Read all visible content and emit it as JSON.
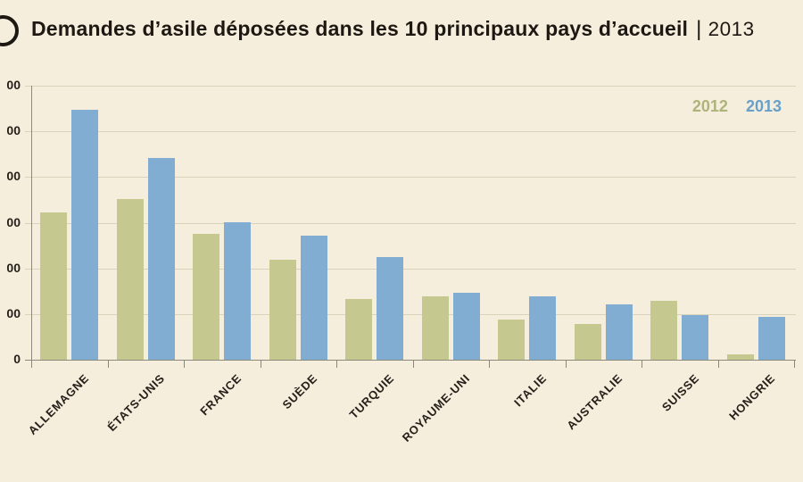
{
  "header": {
    "icon": "circle-outline-icon",
    "title_main": "Demandes d’asile déposées dans les 10 principaux pays d’accueil",
    "title_separator": "|",
    "title_year": "2013"
  },
  "legend": {
    "position": "top-right",
    "items": [
      {
        "label": "2012",
        "color": "#aeb37b"
      },
      {
        "label": "2013",
        "color": "#68a0ca"
      }
    ]
  },
  "y_axis": {
    "visible_labels": [
      "00",
      "00",
      "00",
      "00",
      "00",
      "00",
      "0"
    ]
  },
  "chart_data": {
    "type": "bar",
    "title": "Demandes d’asile déposées dans les 10 principaux pays d’accueil | 2013",
    "categories": [
      "ALLEMAGNE",
      "ÉTATS-UNIS",
      "FRANCE",
      "SUÈDE",
      "TURQUIE",
      "ROYAUME-UNI",
      "ITALIE",
      "AUSTRALIE",
      "SUISSE",
      "HONGRIE"
    ],
    "series": [
      {
        "name": "2012",
        "color": "#c6c98f",
        "values": [
          64500,
          70400,
          55100,
          43900,
          26500,
          27900,
          17400,
          15800,
          25900,
          2200
        ]
      },
      {
        "name": "2013",
        "color": "#82add3",
        "values": [
          109600,
          88400,
          60100,
          54300,
          44800,
          29400,
          27800,
          24300,
          19400,
          18900
        ]
      }
    ],
    "xlabel": "",
    "ylabel": "",
    "ylim": [
      0,
      120000
    ],
    "y_ticks": [
      0,
      20000,
      40000,
      60000,
      80000,
      100000,
      120000
    ],
    "grid": true,
    "legend_position": "top-right",
    "colors": {
      "gridline": "#d8d4bc",
      "axis": "#8b897c",
      "label": "#26201a",
      "background": "#f5eedd"
    }
  }
}
